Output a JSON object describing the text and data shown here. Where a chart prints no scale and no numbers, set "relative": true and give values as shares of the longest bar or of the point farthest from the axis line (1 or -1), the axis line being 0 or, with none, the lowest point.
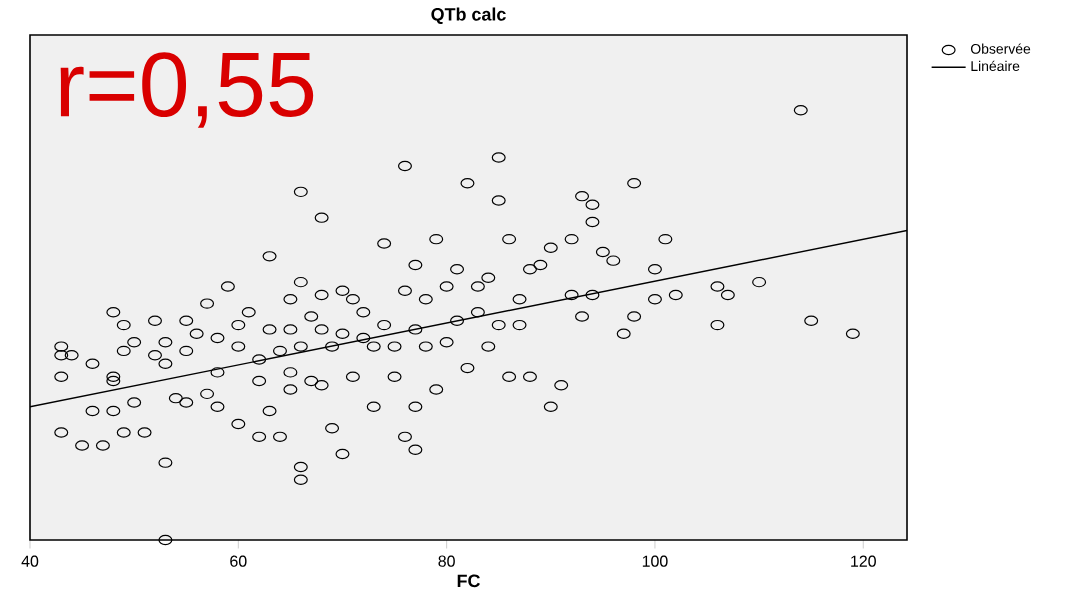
{
  "chart_data": {
    "type": "scatter",
    "title": "QTb calc",
    "xlabel": "FC",
    "relative": true,
    "xlim": [
      40,
      124.2
    ],
    "xticks": [
      40,
      60,
      80,
      100,
      120
    ],
    "legend": "top right",
    "annotations": [
      "r=0,55"
    ],
    "series": [
      {
        "name": "Observée",
        "marker": "circle",
        "color": "#000000",
        "x": [
          43,
          43,
          43,
          43,
          44,
          46,
          46,
          45,
          47,
          48,
          48,
          48,
          48,
          49,
          49,
          49,
          50,
          50,
          51,
          52,
          52,
          53,
          53,
          53,
          53,
          54,
          55,
          55,
          55,
          56,
          57,
          57,
          58,
          58,
          58,
          59,
          60,
          60,
          60,
          61,
          62,
          62,
          62,
          63,
          63,
          63,
          64,
          64,
          65,
          65,
          65,
          65,
          66,
          66,
          66,
          66,
          66,
          67,
          67,
          68,
          68,
          68,
          68,
          69,
          69,
          70,
          70,
          70,
          71,
          71,
          72,
          72,
          73,
          73,
          74,
          74,
          75,
          75,
          76,
          76,
          76,
          77,
          77,
          77,
          77,
          78,
          78,
          79,
          79,
          80,
          80,
          81,
          81,
          82,
          82,
          83,
          83,
          84,
          84,
          85,
          85,
          85,
          86,
          86,
          87,
          87,
          88,
          88,
          89,
          90,
          90,
          91,
          92,
          92,
          93,
          93,
          94,
          94,
          94,
          95,
          96,
          97,
          98,
          98,
          100,
          100,
          101,
          102,
          106,
          106,
          107,
          110,
          114,
          115,
          119
        ],
        "values": [
          0.45,
          0.43,
          0.38,
          0.25,
          0.43,
          0.41,
          0.3,
          0.22,
          0.22,
          0.38,
          0.37,
          0.3,
          0.53,
          0.5,
          0.44,
          0.25,
          0.46,
          0.32,
          0.25,
          0.51,
          0.43,
          0.46,
          0.41,
          0.18,
          0,
          0.33,
          0.44,
          0.51,
          0.32,
          0.48,
          0.55,
          0.34,
          0.47,
          0.39,
          0.31,
          0.59,
          0.5,
          0.45,
          0.27,
          0.53,
          0.42,
          0.37,
          0.24,
          0.66,
          0.49,
          0.3,
          0.44,
          0.24,
          0.56,
          0.49,
          0.39,
          0.35,
          0.81,
          0.6,
          0.45,
          0.17,
          0.14,
          0.52,
          0.37,
          0.75,
          0.57,
          0.49,
          0.36,
          0.45,
          0.26,
          0.58,
          0.48,
          0.2,
          0.56,
          0.38,
          0.53,
          0.47,
          0.45,
          0.31,
          0.69,
          0.5,
          0.45,
          0.38,
          0.87,
          0.58,
          0.24,
          0.64,
          0.49,
          0.31,
          0.21,
          0.56,
          0.45,
          0.7,
          0.35,
          0.59,
          0.46,
          0.63,
          0.51,
          0.83,
          0.4,
          0.53,
          0.59,
          0.61,
          0.45,
          0.89,
          0.79,
          0.5,
          0.7,
          0.38,
          0.56,
          0.5,
          0.63,
          0.38,
          0.64,
          0.68,
          0.31,
          0.36,
          0.7,
          0.57,
          0.8,
          0.52,
          0.78,
          0.74,
          0.57,
          0.67,
          0.65,
          0.48,
          0.83,
          0.52,
          0.63,
          0.56,
          0.7,
          0.57,
          0.59,
          0.5,
          0.57,
          0.6,
          1,
          0.51,
          0.48
        ]
      },
      {
        "name": "Linéaire",
        "type": "line",
        "marker": "none",
        "color": "#000000",
        "x": [
          40,
          124.2
        ],
        "values": [
          0.31,
          0.72
        ]
      }
    ]
  }
}
